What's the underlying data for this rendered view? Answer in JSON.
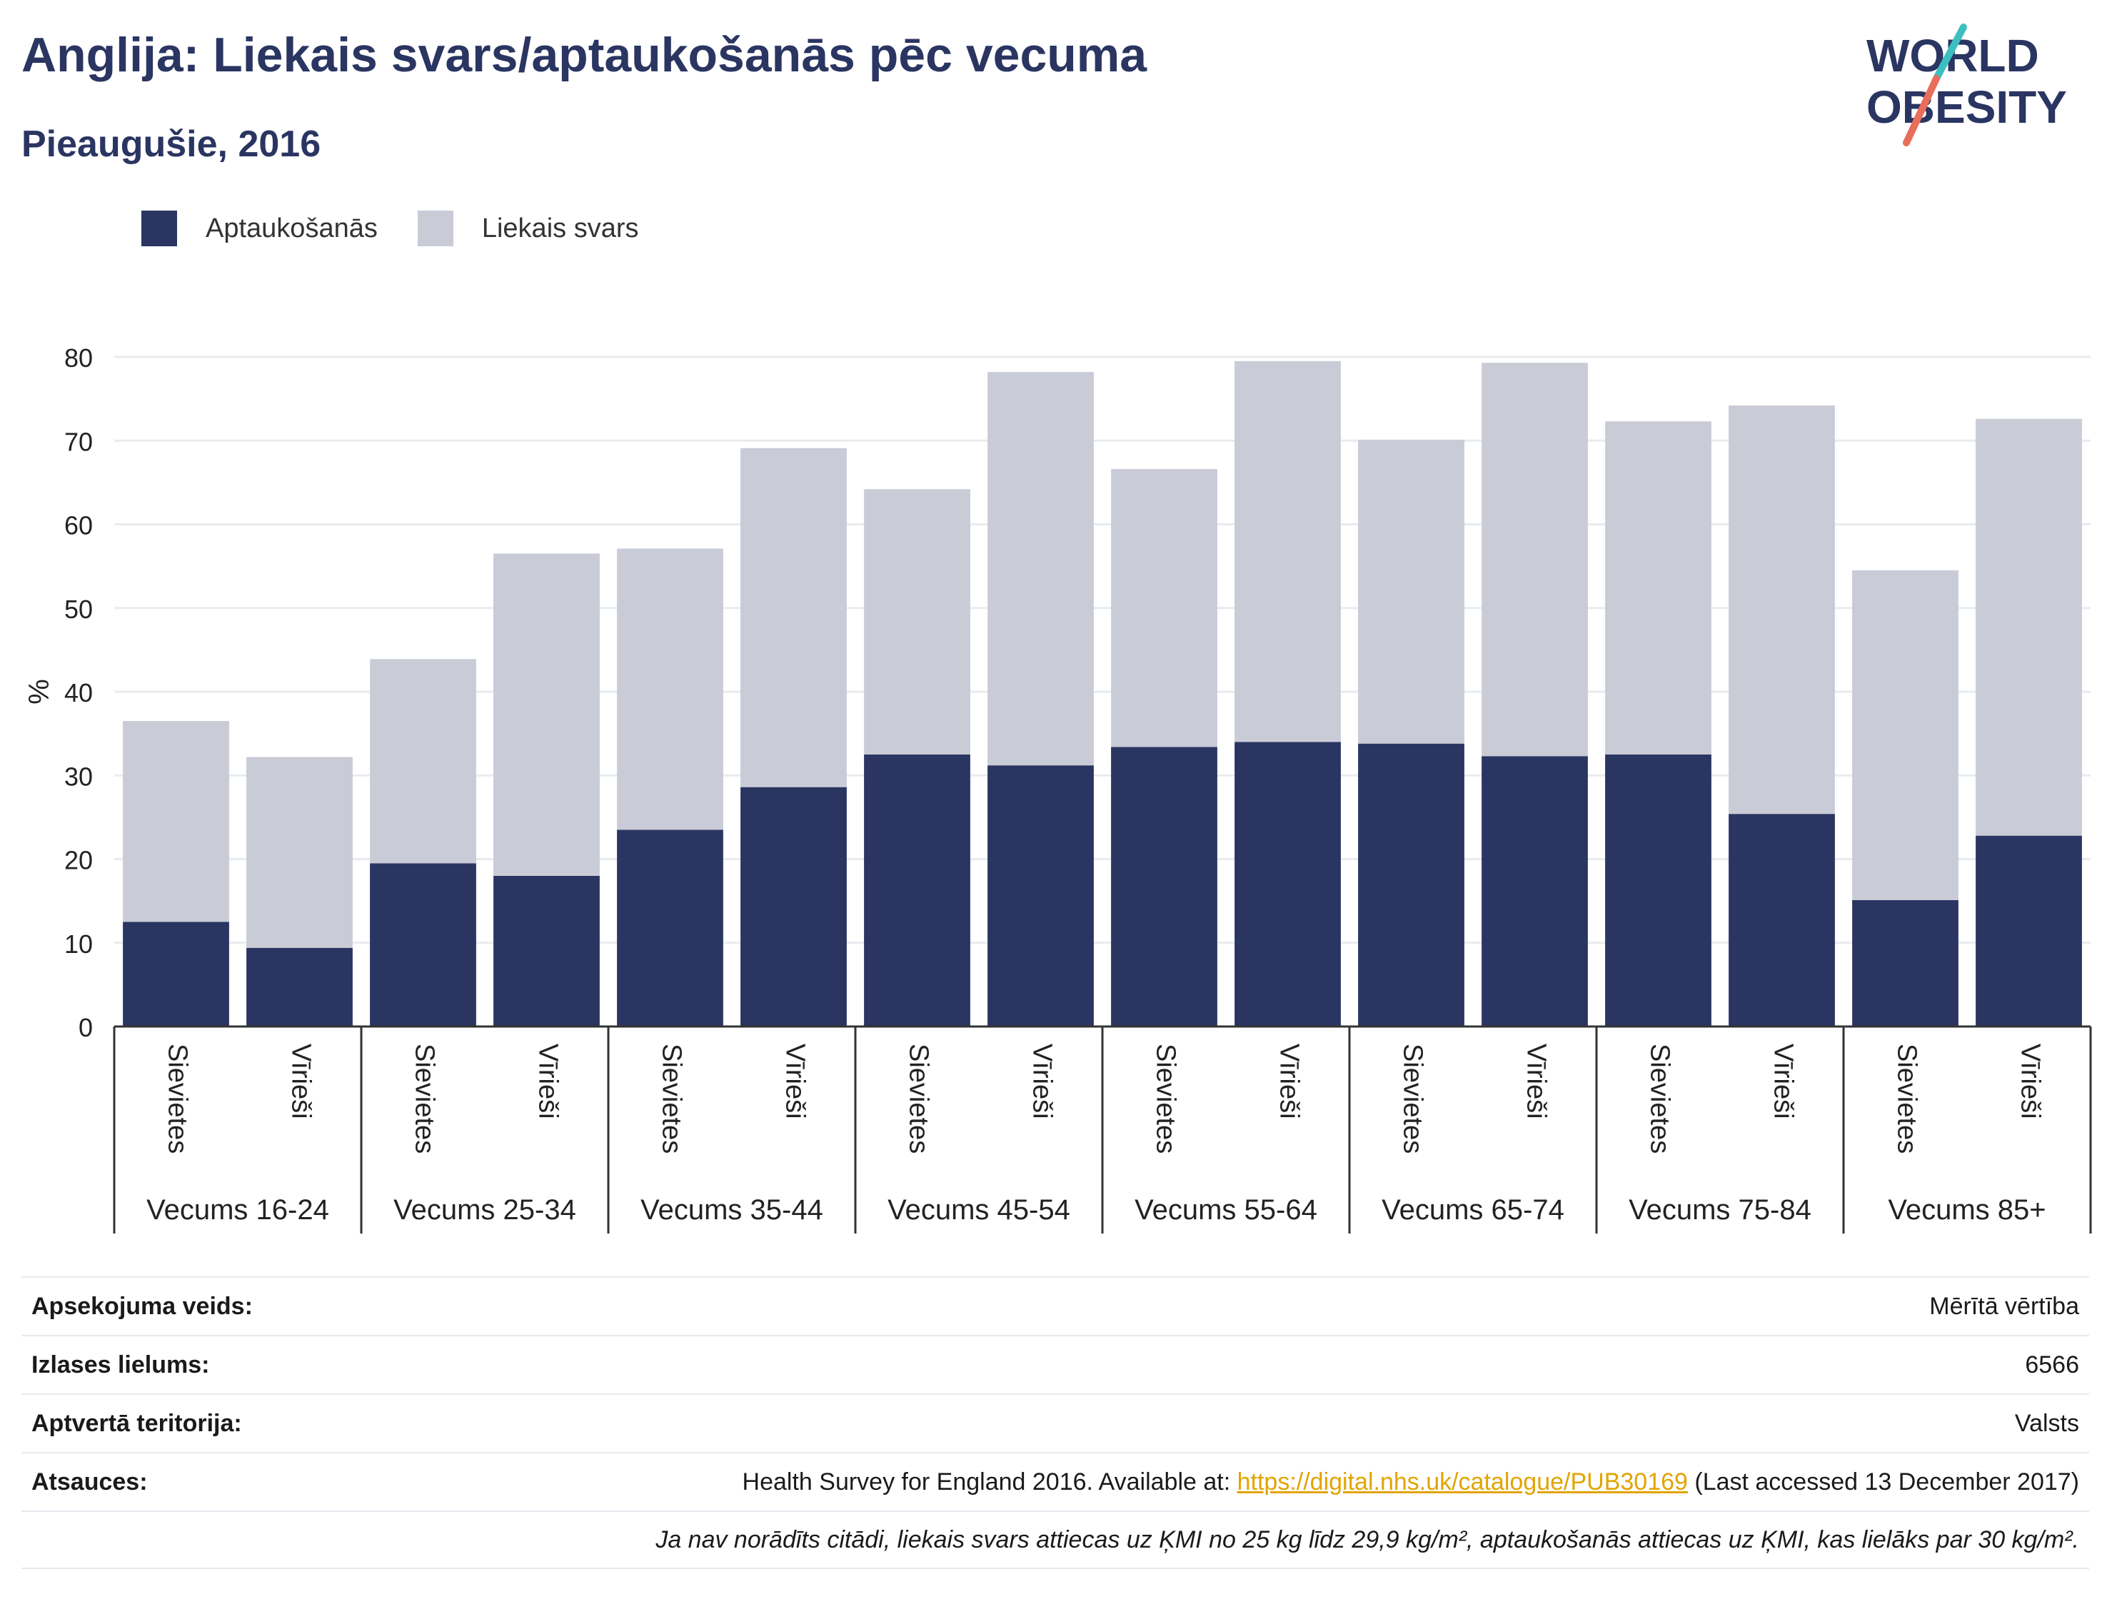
{
  "header": {
    "title": "Anglija: Liekais svars/aptaukošanās pēc vecuma",
    "subtitle": "Pieaugušie, 2016",
    "logo_line1": "WORLD",
    "logo_line2": "OBESITY"
  },
  "colors": {
    "obesity": "#2a3561",
    "overweight": "#c9cbd7",
    "title": "#2a3561",
    "link": "#e2a400",
    "logo_slash_teal": "#3ebfbf",
    "logo_slash_coral": "#e96d5b"
  },
  "legend": {
    "obesity_label": "Aptaukošanās",
    "overweight_label": "Liekais svars"
  },
  "chart_data": {
    "type": "bar",
    "stacked": true,
    "ylabel": "%",
    "ylim": [
      0,
      80
    ],
    "yticks": [
      0,
      10,
      20,
      30,
      40,
      50,
      60,
      70,
      80
    ],
    "grid": true,
    "legend_position": "top-left",
    "groups": [
      "Vecums 16-24",
      "Vecums 25-34",
      "Vecums 35-44",
      "Vecums 45-54",
      "Vecums 55-64",
      "Vecums 65-74",
      "Vecums 75-84",
      "Vecums 85+"
    ],
    "sub_categories": [
      "Sievietes",
      "Vīrieši"
    ],
    "categories": [
      "Vecums 16-24 Sievietes",
      "Vecums 16-24 Vīrieši",
      "Vecums 25-34 Sievietes",
      "Vecums 25-34 Vīrieši",
      "Vecums 35-44 Sievietes",
      "Vecums 35-44 Vīrieši",
      "Vecums 45-54 Sievietes",
      "Vecums 45-54 Vīrieši",
      "Vecums 55-64 Sievietes",
      "Vecums 55-64 Vīrieši",
      "Vecums 65-74 Sievietes",
      "Vecums 65-74 Vīrieši",
      "Vecums 75-84 Sievietes",
      "Vecums 75-84 Vīrieši",
      "Vecums 85+ Sievietes",
      "Vecums 85+ Vīrieši"
    ],
    "series": [
      {
        "name": "Aptaukošanās",
        "values": [
          12.5,
          9.4,
          19.5,
          18.0,
          23.5,
          28.6,
          32.5,
          31.2,
          33.4,
          34.0,
          33.8,
          32.3,
          32.5,
          25.4,
          15.1,
          22.8
        ]
      },
      {
        "name": "Liekais svars",
        "values": [
          24.0,
          22.8,
          24.4,
          38.5,
          33.6,
          40.5,
          31.7,
          47.0,
          33.2,
          45.5,
          36.3,
          47.0,
          39.8,
          48.8,
          39.4,
          49.8
        ]
      }
    ]
  },
  "info": {
    "survey_type_label": "Apsekojuma veids:",
    "survey_type_value": "Mērītā vērtība",
    "sample_size_label": "Izlases lielums:",
    "sample_size_value": "6566",
    "area_label": "Aptvertā teritorija:",
    "area_value": "Valsts",
    "references_label": "Atsauces:",
    "references_prefix": "Health Survey for England 2016. Available at: ",
    "references_link": "https://digital.nhs.uk/catalogue/PUB30169",
    "references_suffix": " (Last accessed 13 December 2017)",
    "note": "Ja nav norādīts citādi, liekais svars attiecas uz ĶMI no 25 kg līdz 29,9 kg/m², aptaukošanās attiecas uz ĶMI, kas lielāks par 30 kg/m²."
  }
}
